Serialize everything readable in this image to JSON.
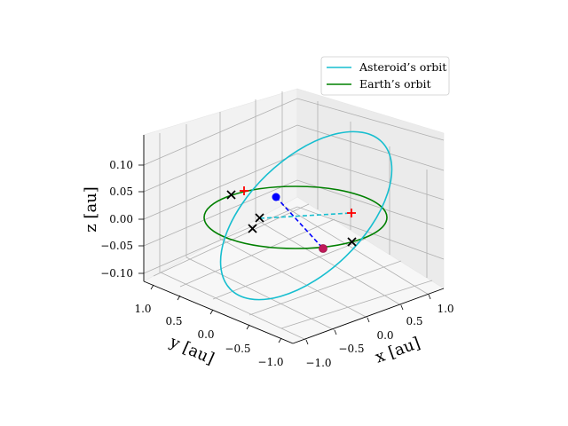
{
  "chart_data": {
    "type": "3d-line",
    "xlabel": "x [au]",
    "ylabel": "y [au]",
    "zlabel": "z [au]",
    "xlim": [
      -1.2,
      1.2
    ],
    "ylim": [
      -1.2,
      1.2
    ],
    "zlim": [
      -0.12,
      0.14
    ],
    "x_ticks": [
      {
        "label": "−1.0"
      },
      {
        "label": "−0.5"
      },
      {
        "label": "0.0"
      },
      {
        "label": "0.5"
      },
      {
        "label": "1.0"
      }
    ],
    "y_ticks": [
      {
        "label": "1.0"
      },
      {
        "label": "0.5"
      },
      {
        "label": "0.0"
      },
      {
        "label": "−0.5"
      },
      {
        "label": "−1.0"
      }
    ],
    "z_ticks": [
      {
        "label": "0.10"
      },
      {
        "label": "0.05"
      },
      {
        "label": "0.00"
      },
      {
        "label": "−0.05"
      },
      {
        "label": "−0.10"
      }
    ],
    "grid": true,
    "legend_position": "top-right",
    "series": [
      {
        "name": "Asteroid’s orbit",
        "color": "#17becf",
        "style": "solid",
        "orbit": {
          "a": 1.0,
          "inclination_deg": 10
        }
      },
      {
        "name": "Earth’s orbit",
        "color": "#008000",
        "style": "solid",
        "orbit": {
          "a": 1.0,
          "inclination_deg": 0
        }
      }
    ],
    "points": [
      {
        "marker": "circle",
        "color": "#0000ff",
        "x": -0.35,
        "y": 0.85,
        "z": 0.06
      },
      {
        "marker": "circle",
        "color": "#c0185a",
        "x": 0.25,
        "y": -0.9,
        "z": -0.05
      },
      {
        "marker": "plus",
        "color": "#ff0000",
        "x": -0.05,
        "y": 1.2,
        "z": 0.04
      },
      {
        "marker": "plus",
        "color": "#ff0000",
        "x": 1.05,
        "y": 0.1,
        "z": 0.0
      },
      {
        "marker": "x",
        "color": "#000000",
        "x": -0.45,
        "y": 1.2,
        "z": 0.04
      },
      {
        "marker": "x",
        "color": "#000000",
        "x": -0.6,
        "y": 0.5,
        "z": -0.005
      },
      {
        "marker": "x",
        "color": "#000000",
        "x": -0.8,
        "y": 0.45,
        "z": -0.02
      },
      {
        "marker": "x",
        "color": "#000000",
        "x": 0.8,
        "y": -0.6,
        "z": -0.05
      }
    ],
    "connectors": [
      {
        "color": "#0000ff",
        "style": "dashed",
        "from": 0,
        "to": 1
      },
      {
        "color": "#17becf",
        "style": "dashed",
        "from": 5,
        "to": 3
      }
    ]
  }
}
